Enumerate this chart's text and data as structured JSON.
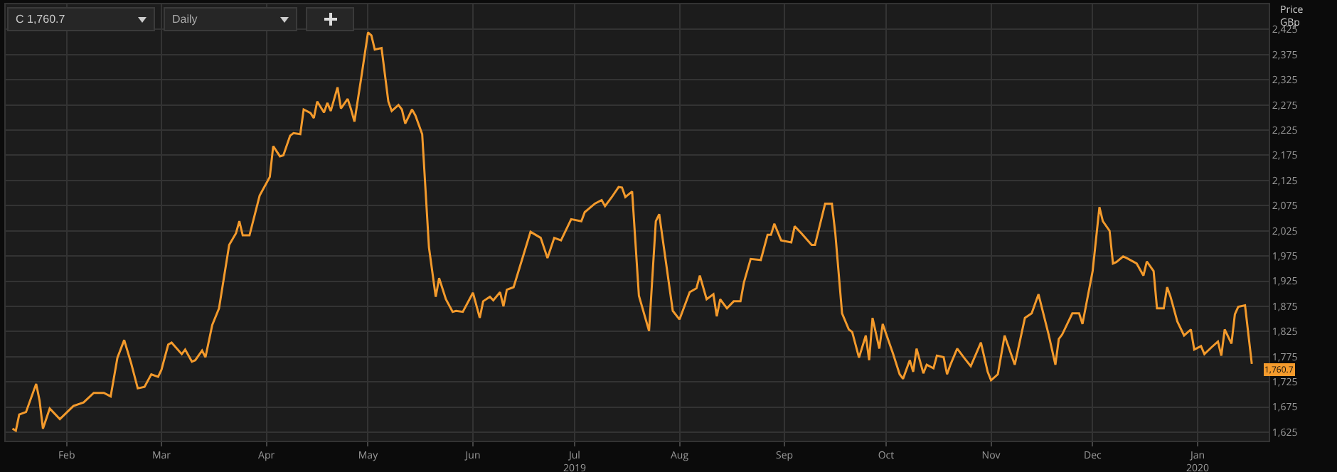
{
  "chart_data": {
    "type": "line",
    "ylabel": "Price\nGBp",
    "annotations": [
      "C 1,760.7",
      "Daily",
      {
        "text": "1,760.7",
        "x": "2020-01-17",
        "y": 1760.7
      }
    ],
    "x": [
      "2019-01-16",
      "2019-01-17",
      "2019-01-18",
      "2019-01-20",
      "2019-01-23",
      "2019-01-24",
      "2019-01-25",
      "2019-01-27",
      "2019-01-30",
      "2019-02-03",
      "2019-02-06",
      "2019-02-09",
      "2019-02-12",
      "2019-02-14",
      "2019-02-16",
      "2019-02-18",
      "2019-02-20",
      "2019-02-22",
      "2019-02-24",
      "2019-02-26",
      "2019-02-28",
      "2019-03-01",
      "2019-03-03",
      "2019-03-04",
      "2019-03-07",
      "2019-03-08",
      "2019-03-10",
      "2019-03-11",
      "2019-03-13",
      "2019-03-14",
      "2019-03-16",
      "2019-03-18",
      "2019-03-21",
      "2019-03-23",
      "2019-03-24",
      "2019-03-25",
      "2019-03-27",
      "2019-03-30",
      "2019-04-02",
      "2019-04-03",
      "2019-04-05",
      "2019-04-06",
      "2019-04-08",
      "2019-04-09",
      "2019-04-11",
      "2019-04-12",
      "2019-04-14",
      "2019-04-15",
      "2019-04-16",
      "2019-04-18",
      "2019-04-19",
      "2019-04-20",
      "2019-04-22",
      "2019-04-23",
      "2019-04-25",
      "2019-04-26",
      "2019-04-27",
      "2019-04-29",
      "2019-05-01",
      "2019-05-02",
      "2019-05-03",
      "2019-05-05",
      "2019-05-07",
      "2019-05-08",
      "2019-05-10",
      "2019-05-11",
      "2019-05-12",
      "2019-05-14",
      "2019-05-15",
      "2019-05-17",
      "2019-05-19",
      "2019-05-21",
      "2019-05-22",
      "2019-05-24",
      "2019-05-26",
      "2019-05-27",
      "2019-05-29",
      "2019-06-01",
      "2019-06-03",
      "2019-06-04",
      "2019-06-06",
      "2019-06-07",
      "2019-06-09",
      "2019-06-10",
      "2019-06-11",
      "2019-06-13",
      "2019-06-18",
      "2019-06-21",
      "2019-06-23",
      "2019-06-25",
      "2019-06-27",
      "2019-06-30",
      "2019-07-03",
      "2019-07-04",
      "2019-07-07",
      "2019-07-09",
      "2019-07-10",
      "2019-07-12",
      "2019-07-14",
      "2019-07-15",
      "2019-07-16",
      "2019-07-18",
      "2019-07-20",
      "2019-07-23",
      "2019-07-25",
      "2019-07-26",
      "2019-07-30",
      "2019-08-01",
      "2019-08-04",
      "2019-08-06",
      "2019-08-07",
      "2019-08-09",
      "2019-08-11",
      "2019-08-12",
      "2019-08-13",
      "2019-08-15",
      "2019-08-17",
      "2019-08-19",
      "2019-08-20",
      "2019-08-22",
      "2019-08-25",
      "2019-08-27",
      "2019-08-28",
      "2019-08-29",
      "2019-08-31",
      "2019-09-03",
      "2019-09-04",
      "2019-09-06",
      "2019-09-09",
      "2019-09-10",
      "2019-09-13",
      "2019-09-15",
      "2019-09-16",
      "2019-09-18",
      "2019-09-20",
      "2019-09-21",
      "2019-09-23",
      "2019-09-25",
      "2019-09-26",
      "2019-09-27",
      "2019-09-29",
      "2019-09-30",
      "2019-10-02",
      "2019-10-03",
      "2019-10-05",
      "2019-10-06",
      "2019-10-08",
      "2019-10-09",
      "2019-10-10",
      "2019-10-12",
      "2019-10-13",
      "2019-10-15",
      "2019-10-16",
      "2019-10-18",
      "2019-10-19",
      "2019-10-20",
      "2019-10-22",
      "2019-10-24",
      "2019-10-26",
      "2019-10-29",
      "2019-10-31",
      "2019-11-01",
      "2019-11-03",
      "2019-11-05",
      "2019-11-08",
      "2019-11-11",
      "2019-11-13",
      "2019-11-15",
      "2019-11-18",
      "2019-11-20",
      "2019-11-21",
      "2019-11-22",
      "2019-11-25",
      "2019-11-27",
      "2019-11-28",
      "2019-12-01",
      "2019-12-03",
      "2019-12-04",
      "2019-12-06",
      "2019-12-07",
      "2019-12-08",
      "2019-12-10",
      "2019-12-11",
      "2019-12-14",
      "2019-12-16",
      "2019-12-17",
      "2019-12-19",
      "2019-12-20",
      "2019-12-22",
      "2019-12-23",
      "2019-12-24",
      "2019-12-26",
      "2019-12-28",
      "2019-12-30",
      "2019-12-31",
      "2020-01-02",
      "2020-01-03",
      "2020-01-05",
      "2020-01-07",
      "2020-01-08",
      "2020-01-09",
      "2020-01-11",
      "2020-01-12",
      "2020-01-13",
      "2020-01-15",
      "2020-01-17"
    ],
    "series": [
      {
        "color": "#f39a2c",
        "values": [
          1632,
          1628,
          1660,
          1665,
          1721,
          1688,
          1632,
          1672,
          1651,
          1677,
          1684,
          1703,
          1703,
          1696,
          1773,
          1808,
          1763,
          1712,
          1715,
          1740,
          1735,
          1749,
          1799,
          1803,
          1780,
          1789,
          1765,
          1768,
          1787,
          1774,
          1838,
          1871,
          1997,
          2020,
          2044,
          2016,
          2016,
          2095,
          2132,
          2193,
          2173,
          2175,
          2214,
          2219,
          2217,
          2266,
          2259,
          2249,
          2282,
          2260,
          2279,
          2263,
          2310,
          2268,
          2287,
          2266,
          2242,
          2329,
          2419,
          2413,
          2385,
          2388,
          2282,
          2263,
          2275,
          2266,
          2238,
          2266,
          2254,
          2217,
          1992,
          1894,
          1931,
          1889,
          1864,
          1866,
          1864,
          1902,
          1852,
          1885,
          1894,
          1887,
          1903,
          1875,
          1908,
          1913,
          2023,
          2011,
          1971,
          2011,
          2006,
          2048,
          2044,
          2062,
          2079,
          2086,
          2074,
          2092,
          2112,
          2111,
          2092,
          2103,
          1896,
          1826,
          2044,
          2058,
          1866,
          1849,
          1903,
          1911,
          1936,
          1889,
          1899,
          1855,
          1889,
          1871,
          1885,
          1885,
          1922,
          1969,
          1967,
          2017,
          2017,
          2039,
          2006,
          2002,
          2034,
          2020,
          1997,
          1997,
          2079,
          2079,
          2020,
          1861,
          1829,
          1824,
          1773,
          1817,
          1768,
          1852,
          1791,
          1840,
          1801,
          1782,
          1740,
          1731,
          1768,
          1745,
          1791,
          1742,
          1759,
          1752,
          1777,
          1774,
          1740,
          1759,
          1791,
          1773,
          1756,
          1803,
          1745,
          1728,
          1740,
          1817,
          1759,
          1852,
          1861,
          1899,
          1819,
          1759,
          1810,
          1819,
          1861,
          1861,
          1840,
          1945,
          2072,
          2044,
          2025,
          1960,
          1963,
          1974,
          1971,
          1960,
          1936,
          1964,
          1945,
          1871,
          1871,
          1913,
          1894,
          1845,
          1817,
          1829,
          1789,
          1796,
          1780,
          1793,
          1805,
          1777,
          1829,
          1801,
          1859,
          1874,
          1877,
          1760.7
        ]
      }
    ],
    "xlim": [
      "2019-01-14",
      "2020-01-22"
    ],
    "xticks": [
      {
        "value": "2019-02-01",
        "label": "Feb"
      },
      {
        "value": "2019-03-01",
        "label": "Mar"
      },
      {
        "value": "2019-04-01",
        "label": "Apr"
      },
      {
        "value": "2019-05-01",
        "label": "May"
      },
      {
        "value": "2019-06-01",
        "label": "Jun"
      },
      {
        "value": "2019-07-01",
        "label": "Jul\n2019"
      },
      {
        "value": "2019-08-01",
        "label": "Aug"
      },
      {
        "value": "2019-09-01",
        "label": "Sep"
      },
      {
        "value": "2019-10-01",
        "label": "Oct"
      },
      {
        "value": "2019-11-01",
        "label": "Nov"
      },
      {
        "value": "2019-12-01",
        "label": "Dec"
      },
      {
        "value": "2020-01-01",
        "label": "Jan\n2020"
      }
    ],
    "ylim": [
      1608,
      2475
    ],
    "yticks": [
      {
        "value": 1625,
        "label": "1,625"
      },
      {
        "value": 1675,
        "label": "1,675"
      },
      {
        "value": 1725,
        "label": "1,725"
      },
      {
        "value": 1775,
        "label": "1,775"
      },
      {
        "value": 1825,
        "label": "1,825"
      },
      {
        "value": 1875,
        "label": "1,875"
      },
      {
        "value": 1925,
        "label": "1,925"
      },
      {
        "value": 1975,
        "label": "1,975"
      },
      {
        "value": 2025,
        "label": "2,025"
      },
      {
        "value": 2075,
        "label": "2,075"
      },
      {
        "value": 2125,
        "label": "2,125"
      },
      {
        "value": 2175,
        "label": "2,175"
      },
      {
        "value": 2225,
        "label": "2,225"
      },
      {
        "value": 2275,
        "label": "2,275"
      },
      {
        "value": 2325,
        "label": "2,325"
      },
      {
        "value": 2375,
        "label": "2,375"
      },
      {
        "value": 2425,
        "label": "2,425"
      }
    ],
    "grid": true,
    "line_style": "solid"
  }
}
